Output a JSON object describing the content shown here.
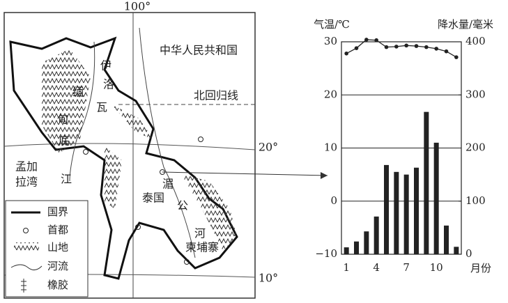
{
  "map": {
    "labels": [
      "100°",
      "中华人民共和国",
      "北回归线",
      "20°",
      "10°",
      "伊",
      "洛",
      "缅",
      "瓦",
      "甸",
      "底",
      "江",
      "孟加",
      "拉湾",
      "泰国",
      "湄",
      "公",
      "河",
      "柬埔寨"
    ],
    "legend": [
      "国界",
      "首都",
      "山地",
      "河流",
      "橡胶"
    ]
  },
  "chart_data": {
    "type": "climate",
    "categories": [
      "1",
      null,
      null,
      "4",
      null,
      null,
      "7",
      null,
      null,
      "10",
      null,
      null
    ],
    "x_label": "月份",
    "series": [
      {
        "name": "降水量",
        "kind": "bar",
        "axis": "y2",
        "color": "#222",
        "values": [
          13,
          24,
          43,
          71,
          168,
          155,
          150,
          163,
          268,
          210,
          54,
          14
        ]
      },
      {
        "name": "气温",
        "kind": "line",
        "color": "#222",
        "values": [
          27.8,
          28.8,
          30.4,
          30.3,
          29,
          29.1,
          29.3,
          29.2,
          29,
          28.7,
          28.2,
          27.1
        ]
      }
    ],
    "y_label": "气温/℃",
    "y2_label": "降水量/毫米",
    "ylim": [
      -10,
      30
    ],
    "yticks": [
      {
        "value": -10,
        "label": "−10"
      },
      0,
      10,
      20,
      30
    ],
    "y2lim": [
      0,
      400
    ],
    "y2ticks": [
      0,
      100,
      200,
      300,
      400
    ],
    "grid": true
  }
}
